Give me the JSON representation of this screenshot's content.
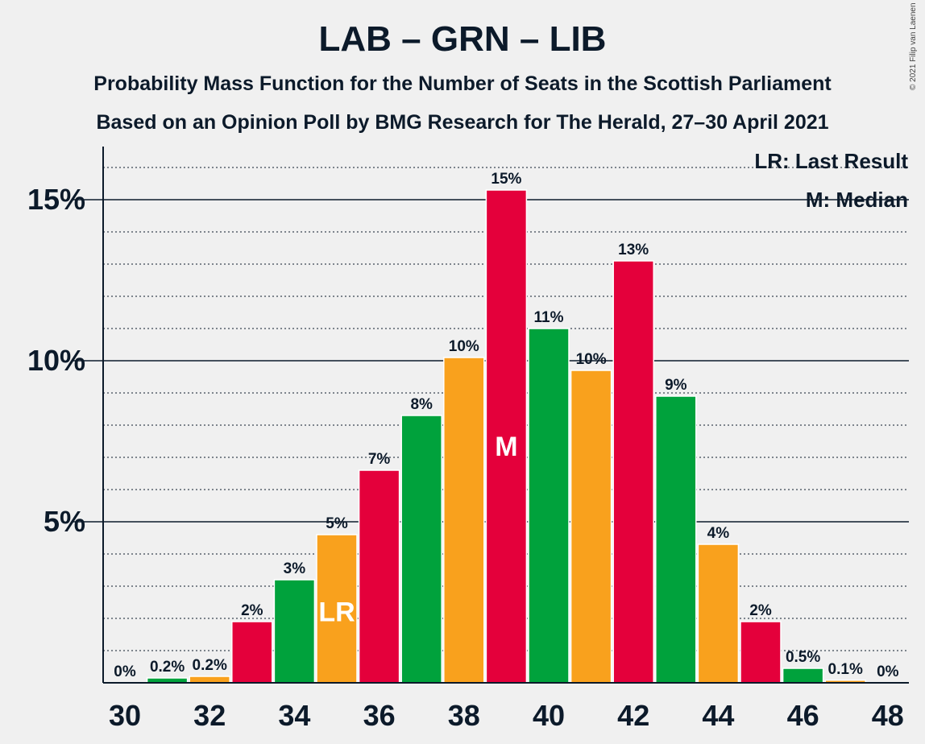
{
  "title": "LAB – GRN – LIB",
  "subtitle_1": "Probability Mass Function for the Number of Seats in the Scottish Parliament",
  "subtitle_2": "Based on an Opinion Poll by BMG Research for The Herald, 27–30 April 2021",
  "copyright": "© 2021 Filip van Laenen",
  "colors": {
    "red": "#e4003b",
    "green": "#00a23c",
    "orange": "#f9a11d",
    "axis": "#0c1a2a",
    "background": "#f0f0f0"
  },
  "chart_data": {
    "type": "bar",
    "x": [
      30,
      31,
      32,
      33,
      34,
      35,
      36,
      37,
      38,
      39,
      40,
      41,
      42,
      43,
      44,
      45,
      46,
      47,
      48
    ],
    "values": [
      0,
      0.15,
      0.2,
      1.9,
      3.2,
      4.6,
      6.6,
      8.3,
      10.1,
      15.3,
      11.0,
      9.7,
      13.1,
      8.9,
      4.3,
      1.9,
      0.45,
      0.08,
      0
    ],
    "data_labels": [
      "0%",
      "0.2%",
      "0.2%",
      "2%",
      "3%",
      "5%",
      "7%",
      "8%",
      "10%",
      "15%",
      "11%",
      "10%",
      "13%",
      "9%",
      "4%",
      "2%",
      "0.5%",
      "0.1%",
      "0%"
    ],
    "bar_colors": [
      "red",
      "green",
      "orange",
      "red",
      "green",
      "orange",
      "red",
      "green",
      "orange",
      "red",
      "green",
      "orange",
      "red",
      "green",
      "orange",
      "red",
      "green",
      "orange",
      "red"
    ],
    "x_tick_labels": [
      "30",
      "32",
      "34",
      "36",
      "38",
      "40",
      "42",
      "44",
      "46",
      "48"
    ],
    "y_tick_labels": [
      "5%",
      "10%",
      "15%"
    ],
    "y_ticks": [
      5,
      10,
      15
    ],
    "ylim": [
      0,
      16.6
    ],
    "grid": "dotted every 1%, solid every 5%",
    "last_result_seat": 35,
    "last_result_marker": "LR",
    "median_seat": 39,
    "median_marker": "M",
    "legend": {
      "placement": "top-right",
      "items": [
        "LR: Last Result",
        "M: Median"
      ]
    }
  }
}
